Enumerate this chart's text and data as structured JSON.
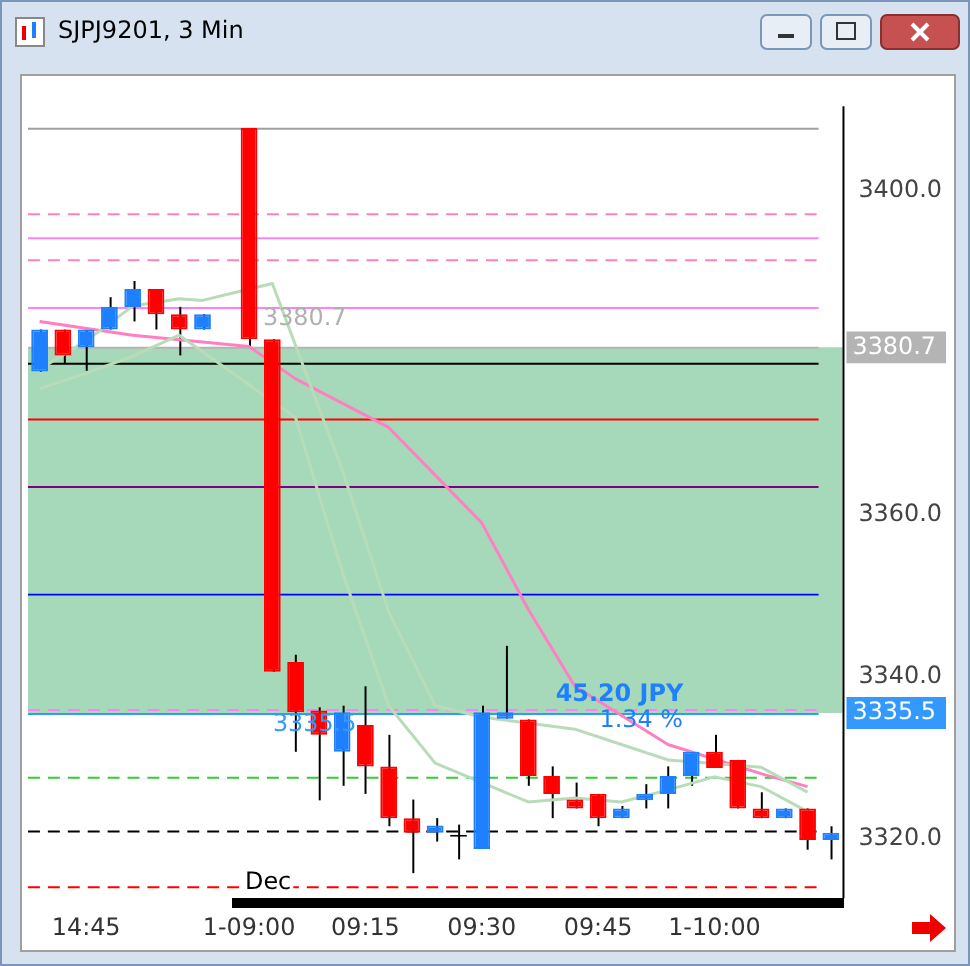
{
  "chart_data": {
    "type": "candlestick",
    "title": "SJPJ9201, 3 Min",
    "categories": [
      null,
      null,
      "14:45",
      null,
      null,
      null,
      null,
      null,
      null,
      "1-09:00",
      null,
      null,
      null,
      null,
      "09:15",
      null,
      null,
      null,
      null,
      "09:30",
      null,
      null,
      null,
      null,
      "09:45",
      null,
      null,
      null,
      null,
      "1-10:00",
      null,
      null,
      null,
      null,
      null
    ],
    "ohlc": [
      [
        3377.7,
        3382.9,
        3377.7,
        3382.9
      ],
      [
        3382.9,
        3382.9,
        3378.7,
        3379.7
      ],
      [
        3380.7,
        3382.9,
        3377.8,
        3382.9
      ],
      [
        3382.9,
        3386.9,
        3382.9,
        3385.7
      ],
      [
        3385.7,
        3388.9,
        3383.9,
        3387.9
      ],
      [
        3387.9,
        3387.9,
        3382.9,
        3384.8
      ],
      [
        3384.8,
        3385.7,
        3379.7,
        3382.9
      ],
      [
        3382.9,
        3384.8,
        3382.9,
        3384.8
      ],
      null,
      [
        3407.8,
        3407.8,
        3380.7,
        3381.7
      ],
      [
        3381.7,
        3381.7,
        3340.6,
        3340.6
      ],
      [
        3341.8,
        3342.7,
        3330.7,
        3335.6
      ],
      [
        3335.8,
        3336.2,
        3324.7,
        3332.8
      ],
      [
        3330.7,
        3336.4,
        3326.5,
        3335.6
      ],
      [
        3334.0,
        3338.8,
        3325.5,
        3328.9
      ],
      [
        3328.9,
        3332.8,
        3321.5,
        3322.5
      ],
      [
        3322.5,
        3324.8,
        3315.7,
        3320.7
      ],
      [
        3320.7,
        3322.5,
        3319.6,
        3321.6
      ],
      [
        3320.2,
        3321.7,
        3317.4,
        3320.2
      ],
      [
        3318.7,
        3336.4,
        3318.7,
        3335.6
      ],
      [
        3334.8,
        3343.8,
        3334.8,
        3335.6
      ],
      [
        3334.7,
        3334.7,
        3326.5,
        3327.7
      ],
      [
        3327.7,
        3328.9,
        3322.5,
        3325.5
      ],
      [
        3324.8,
        3326.9,
        3323.7,
        3323.7
      ],
      [
        3325.5,
        3325.5,
        3321.5,
        3322.5
      ],
      [
        3322.5,
        3324.0,
        3322.5,
        3323.7
      ],
      [
        3324.7,
        3326.7,
        3323.7,
        3325.5
      ],
      [
        3325.5,
        3328.9,
        3323.7,
        3327.7
      ],
      [
        3327.7,
        3330.7,
        3326.5,
        3330.7
      ],
      [
        3330.7,
        3332.8,
        3328.7,
        3328.7
      ],
      [
        3329.7,
        3329.7,
        3323.7,
        3323.7
      ],
      [
        3323.7,
        3325.7,
        3322.5,
        3322.5
      ],
      [
        3322.5,
        3323.7,
        3322.5,
        3323.7
      ],
      [
        3323.7,
        3323.7,
        3318.6,
        3319.8
      ],
      [
        3319.8,
        3321.5,
        3317.4,
        3320.7
      ]
    ],
    "colors": [
      "#1e7fff",
      "#ff0000",
      "#1e7fff",
      "#1e7fff",
      "#1e7fff",
      "#ff0000",
      "#ff0000",
      "#1e7fff",
      null,
      "#ff0000",
      "#ff0000",
      "#ff0000",
      "#ff0000",
      "#1e7fff",
      "#ff0000",
      "#ff0000",
      "#ff0000",
      "#1e7fff",
      "#000000",
      "#1e7fff",
      "#1e7fff",
      "#ff0000",
      "#ff0000",
      "#ff0000",
      "#ff0000",
      "#1e7fff",
      "#1e7fff",
      "#1e7fff",
      "#1e7fff",
      "#ff0000",
      "#ff0000",
      "#ff0000",
      "#1e7fff",
      "#ff0000",
      "#1e7fff"
    ],
    "series": [
      {
        "type": "line",
        "color": "#b8dcb8",
        "values": [
          3378,
          null,
          3381.5,
          null,
          3385.8,
          null,
          3386.7,
          3386.5,
          null,
          null,
          3388.6,
          null,
          null,
          3365.6,
          null,
          3348,
          null,
          3336.4,
          null,
          3335,
          null,
          null,
          null,
          3333.5,
          null,
          3331.6,
          null,
          3329.7,
          null,
          null,
          null,
          3328.8,
          null,
          3325.7,
          null
        ]
      },
      {
        "type": "line",
        "color": "#b8dcb8",
        "values": [
          3375.6,
          null,
          3377.5,
          null,
          3379.6,
          null,
          3382.2,
          null,
          null,
          null,
          null,
          3372,
          null,
          3353,
          null,
          3336.4,
          null,
          3329.3,
          null,
          null,
          null,
          3324.5,
          null,
          3325,
          null,
          3324.5,
          null,
          3326,
          null,
          3327.6,
          null,
          3326.4,
          null,
          3323.3,
          null
        ]
      },
      {
        "type": "line",
        "color": "#ff80c0",
        "values": [
          3383.9,
          null,
          null,
          null,
          3382.2,
          null,
          null,
          null,
          null,
          3380.8,
          null,
          3376.8,
          null,
          null,
          null,
          3370.8,
          null,
          null,
          null,
          3359,
          null,
          3348.3,
          null,
          3338.8,
          null,
          null,
          null,
          3331.6,
          null,
          null,
          null,
          3328,
          null,
          3326.4,
          null
        ]
      }
    ],
    "ylim": [
      3312.6,
      3410.5
    ],
    "yticks": [
      {
        "value": 3320,
        "label": "3320.0"
      },
      {
        "value": 3340,
        "label": "3340.0"
      },
      {
        "value": 3360,
        "label": "3360.0"
      },
      {
        "value": 3400,
        "label": "3400.0"
      }
    ],
    "bands": [
      {
        "axis": "y",
        "from": 3335.5,
        "to": 3380.7,
        "color": "#8fd0a8"
      }
    ],
    "ref_lines": [
      {
        "axis": "y",
        "value": 3407.8,
        "color": "#a0a0a0",
        "line_style": "solid"
      },
      {
        "axis": "y",
        "value": 3397.2,
        "color": "#ff80c0",
        "line_style": "dashed"
      },
      {
        "axis": "y",
        "value": 3394.3,
        "color": "#ff80ff",
        "line_style": "solid"
      },
      {
        "axis": "y",
        "value": 3391.5,
        "color": "#ff80c0",
        "line_style": "dashed"
      },
      {
        "axis": "y",
        "value": 3385.8,
        "color": "#ff80ff",
        "line_style": "solid"
      },
      {
        "axis": "y",
        "value": 3380.7,
        "label": "3380.7",
        "color": "#b4b4b4",
        "line_style": "solid"
      },
      {
        "axis": "y",
        "value": 3378.9,
        "color": "#000000",
        "line_style": "solid"
      },
      {
        "axis": "y",
        "value": 3372.0,
        "color": "#ff0000",
        "line_style": "solid"
      },
      {
        "axis": "y",
        "value": 3363.5,
        "color": "#800080",
        "line_style": "solid"
      },
      {
        "axis": "y",
        "value": 3350.2,
        "color": "#0000ff",
        "line_style": "solid"
      },
      {
        "axis": "y",
        "value": 3335.9,
        "color": "#ff80ff",
        "line_style": "dashed"
      },
      {
        "axis": "y",
        "value": 3335.5,
        "label": "3335.5",
        "color": "#3399ff",
        "line_style": "solid"
      },
      {
        "axis": "y",
        "value": 3327.6,
        "color": "#33cc33",
        "line_style": "dashed"
      },
      {
        "axis": "y",
        "value": 3321.0,
        "color": "#000000",
        "line_style": "dashed"
      },
      {
        "axis": "y",
        "value": 3314.0,
        "color": "#ff0000",
        "line_style": "dashed"
      }
    ],
    "annotations": [
      "3380.7",
      "3335.5",
      "45.20 JPY",
      "1.34 %",
      "Dec"
    ]
  }
}
